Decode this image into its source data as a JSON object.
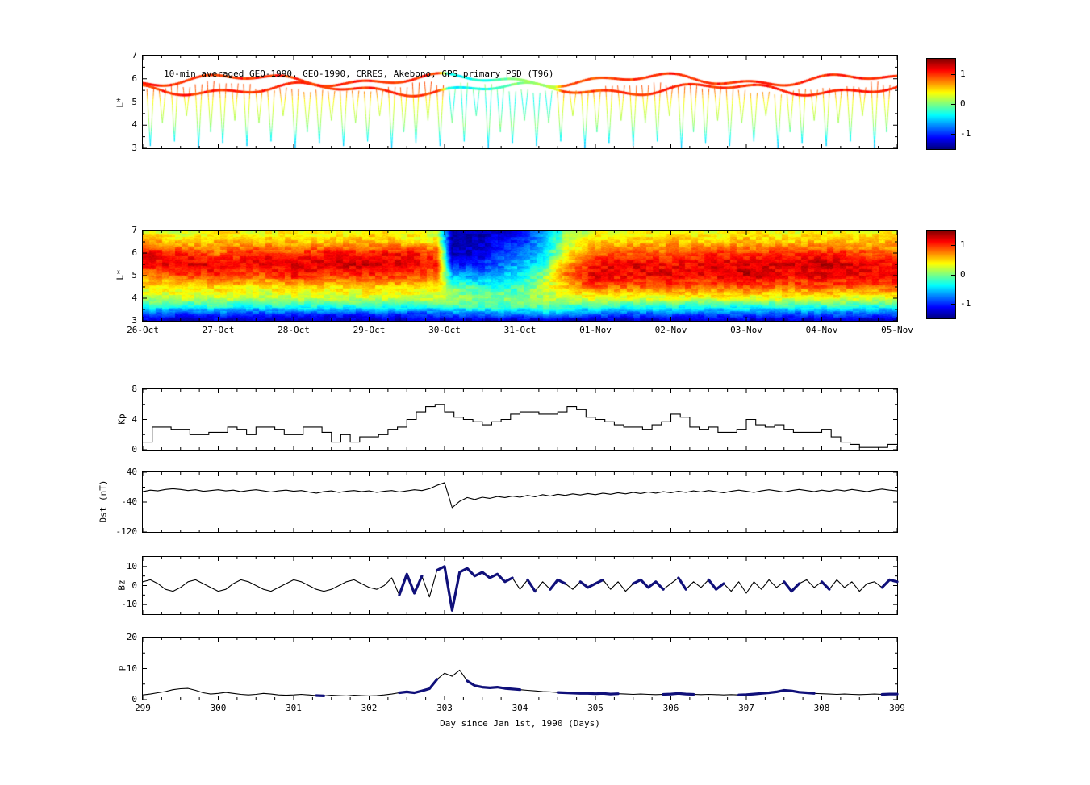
{
  "chart_data": [
    {
      "id": "psd-scatter",
      "type": "scatter",
      "title": "10-min averaged GEO-1990, GEO-1990, CRRES, Akebono, GPS primary PSD (T96)",
      "ylabel": "L*",
      "xlim": [
        299,
        309
      ],
      "ylim": [
        3,
        7
      ],
      "yticks": [
        7,
        6,
        5,
        4,
        3
      ],
      "colorbar": {
        "lim": [
          -1.5,
          1.5
        ],
        "ticks": [
          "1",
          "0",
          "-1"
        ]
      },
      "geo_band": {
        "L_base": [
          5.55,
          5.95
        ],
        "value_keyframes": [
          [
            299,
            1.0
          ],
          [
            302.9,
            1.0
          ],
          [
            303.05,
            -0.4
          ],
          [
            303.6,
            -0.25
          ],
          [
            304.0,
            0.05
          ],
          [
            304.45,
            0.15
          ],
          [
            304.55,
            0.9
          ],
          [
            306,
            1.0
          ],
          [
            309,
            1.05
          ]
        ]
      },
      "L_color_stops": [
        [
          3,
          -0.6
        ],
        [
          3.5,
          -0.35
        ],
        [
          4,
          0.05
        ],
        [
          4.5,
          0.2
        ],
        [
          5,
          0.35
        ],
        [
          5.5,
          0.85
        ],
        [
          6.2,
          1.0
        ],
        [
          7,
          1.0
        ]
      ],
      "storm_window": [
        303.05,
        304.45
      ],
      "storm_shift": -0.85,
      "dips": [
        [
          299.1,
          3.1
        ],
        [
          299.26,
          4.1
        ],
        [
          299.42,
          3.3
        ],
        [
          299.58,
          4.4
        ],
        [
          299.74,
          3.0
        ],
        [
          299.9,
          3.7
        ],
        [
          300.06,
          3.2
        ],
        [
          300.22,
          4.2
        ],
        [
          300.38,
          3.1
        ],
        [
          300.54,
          4.1
        ],
        [
          300.7,
          3.3
        ],
        [
          300.86,
          4.4
        ],
        [
          301.02,
          3.0
        ],
        [
          301.18,
          3.7
        ],
        [
          301.34,
          3.2
        ],
        [
          301.5,
          4.2
        ],
        [
          301.66,
          3.1
        ],
        [
          301.82,
          4.1
        ],
        [
          301.98,
          3.3
        ],
        [
          302.14,
          4.4
        ],
        [
          302.3,
          3.0
        ],
        [
          302.46,
          3.7
        ],
        [
          302.62,
          3.2
        ],
        [
          302.78,
          4.2
        ],
        [
          302.94,
          3.1
        ],
        [
          303.1,
          4.1
        ],
        [
          303.26,
          3.3
        ],
        [
          303.42,
          4.4
        ],
        [
          303.58,
          3.0
        ],
        [
          303.74,
          3.7
        ],
        [
          303.9,
          3.2
        ],
        [
          304.06,
          4.2
        ],
        [
          304.22,
          3.1
        ],
        [
          304.38,
          4.1
        ],
        [
          304.54,
          3.3
        ],
        [
          304.7,
          4.4
        ],
        [
          304.86,
          3.0
        ],
        [
          305.02,
          3.7
        ],
        [
          305.18,
          3.2
        ],
        [
          305.34,
          4.2
        ],
        [
          305.5,
          3.1
        ],
        [
          305.66,
          4.1
        ],
        [
          305.82,
          3.3
        ],
        [
          305.98,
          4.4
        ],
        [
          306.14,
          3.0
        ],
        [
          306.3,
          3.7
        ],
        [
          306.46,
          3.2
        ],
        [
          306.62,
          4.2
        ],
        [
          306.78,
          3.1
        ],
        [
          306.94,
          4.1
        ],
        [
          307.1,
          3.3
        ],
        [
          307.26,
          4.4
        ],
        [
          307.42,
          3.0
        ],
        [
          307.58,
          3.7
        ],
        [
          307.74,
          3.2
        ],
        [
          307.9,
          4.2
        ],
        [
          308.06,
          3.1
        ],
        [
          308.22,
          4.1
        ],
        [
          308.38,
          3.3
        ],
        [
          308.54,
          4.4
        ],
        [
          308.7,
          3.0
        ],
        [
          308.86,
          3.7
        ]
      ]
    },
    {
      "id": "psd-spectrogram",
      "type": "heatmap",
      "ylabel": "L*",
      "xlim": [
        299,
        309
      ],
      "ylim": [
        3,
        7
      ],
      "yticks": [
        7,
        6,
        5,
        4,
        3
      ],
      "xticklabels": [
        "26-Oct",
        "27-Oct",
        "28-Oct",
        "29-Oct",
        "30-Oct",
        "31-Oct",
        "01-Nov",
        "02-Nov",
        "03-Nov",
        "04-Nov",
        "05-Nov"
      ],
      "colorbar": {
        "lim": [
          -1.5,
          1.5
        ],
        "ticks": [
          "1",
          "0",
          "-1"
        ]
      },
      "L_grid": [
        3,
        3.3,
        3.6,
        4,
        4.5,
        5,
        5.5,
        6,
        6.5,
        7
      ],
      "t_grid": [
        299.0,
        299.5,
        300.0,
        300.5,
        301.0,
        301.5,
        302.0,
        302.5,
        302.9,
        303.1,
        303.5,
        304.0,
        304.3,
        304.6,
        305.0,
        305.5,
        306.0,
        306.5,
        307.0,
        307.5,
        308.0,
        308.5,
        309.0
      ],
      "values": [
        [
          -1.3,
          -0.9,
          -0.3,
          0.15,
          0.4,
          0.7,
          1.1,
          1.2,
          0.7,
          0.35
        ],
        [
          -1.3,
          -1.0,
          -0.35,
          0.2,
          0.45,
          0.9,
          1.2,
          1.0,
          0.5,
          0.15
        ],
        [
          -1.3,
          -0.9,
          -0.3,
          0.2,
          0.5,
          1.0,
          1.2,
          0.8,
          0.6,
          0.4
        ],
        [
          -1.3,
          -1.0,
          -0.4,
          0.15,
          0.4,
          0.8,
          1.1,
          1.1,
          0.5,
          0.3
        ],
        [
          -1.3,
          -0.9,
          -0.3,
          0.2,
          0.5,
          1.1,
          1.2,
          0.9,
          0.6,
          0.4
        ],
        [
          -1.3,
          -1.0,
          -0.35,
          0.2,
          0.45,
          0.9,
          1.2,
          1.1,
          0.5,
          0.3
        ],
        [
          -1.3,
          -0.9,
          -0.3,
          0.25,
          0.5,
          1.0,
          1.3,
          1.0,
          0.6,
          0.4
        ],
        [
          -1.3,
          -1.0,
          -0.35,
          0.2,
          0.5,
          0.9,
          1.2,
          1.1,
          0.5,
          0.3
        ],
        [
          -1.3,
          -0.9,
          -0.3,
          0.2,
          0.45,
          0.8,
          1.0,
          0.9,
          0.4,
          0.2
        ],
        [
          -1.3,
          -0.8,
          -0.2,
          0.1,
          0.0,
          -0.6,
          -1.1,
          -1.3,
          -1.35,
          -1.4
        ],
        [
          -1.3,
          -0.8,
          -0.2,
          0.0,
          -0.3,
          -0.7,
          -1.0,
          -1.2,
          -1.3,
          -1.35
        ],
        [
          -1.3,
          -0.7,
          -0.2,
          0.0,
          -0.2,
          -0.4,
          -0.6,
          -0.8,
          -1.0,
          -1.1
        ],
        [
          -1.3,
          -0.6,
          -0.1,
          0.1,
          0.2,
          0.0,
          -0.3,
          -0.5,
          -0.6,
          -0.7
        ],
        [
          -1.3,
          -0.7,
          -0.2,
          0.2,
          0.5,
          0.8,
          0.6,
          0.3,
          0.1,
          0.0
        ],
        [
          -1.3,
          -0.8,
          -0.3,
          0.3,
          0.9,
          1.2,
          1.1,
          0.8,
          0.5,
          0.3
        ],
        [
          -1.3,
          -0.9,
          -0.3,
          0.3,
          0.8,
          1.1,
          1.2,
          0.9,
          0.5,
          0.3
        ],
        [
          -1.3,
          -0.8,
          -0.3,
          0.3,
          0.9,
          1.2,
          1.1,
          0.8,
          0.6,
          0.4
        ],
        [
          -1.3,
          -0.9,
          -0.35,
          0.3,
          0.8,
          1.1,
          1.2,
          1.0,
          0.5,
          0.3
        ],
        [
          -1.3,
          -0.8,
          -0.3,
          0.3,
          0.9,
          1.3,
          1.2,
          0.9,
          0.6,
          0.4
        ],
        [
          -1.3,
          -0.9,
          -0.3,
          0.3,
          0.8,
          1.1,
          1.2,
          1.0,
          0.5,
          0.3
        ],
        [
          -1.3,
          -0.8,
          -0.3,
          0.3,
          0.9,
          1.2,
          1.3,
          1.0,
          0.6,
          0.4
        ],
        [
          -1.3,
          -0.9,
          -0.35,
          0.3,
          0.8,
          1.1,
          1.2,
          0.9,
          0.5,
          0.3
        ],
        [
          -1.3,
          -0.8,
          -0.3,
          0.3,
          0.9,
          1.2,
          1.1,
          0.8,
          0.6,
          0.4
        ]
      ]
    },
    {
      "id": "kp",
      "type": "line",
      "ylabel": "Kp",
      "ylim": [
        0,
        8
      ],
      "yticks": [
        8,
        4,
        0
      ],
      "x_start": 299,
      "dx": 0.125,
      "values": [
        1.0,
        3.0,
        3.0,
        2.7,
        2.7,
        2.0,
        2.0,
        2.3,
        2.3,
        3.0,
        2.7,
        2.0,
        3.0,
        3.0,
        2.7,
        2.0,
        2.0,
        3.0,
        3.0,
        2.3,
        1.0,
        2.0,
        1.0,
        1.7,
        1.7,
        2.0,
        2.7,
        3.0,
        4.0,
        5.0,
        5.7,
        6.0,
        5.0,
        4.3,
        4.0,
        3.7,
        3.3,
        3.7,
        4.0,
        4.7,
        5.0,
        5.0,
        4.7,
        4.7,
        5.0,
        5.7,
        5.3,
        4.3,
        4.0,
        3.7,
        3.3,
        3.0,
        3.0,
        2.7,
        3.3,
        3.7,
        4.7,
        4.3,
        3.0,
        2.7,
        3.0,
        2.3,
        2.3,
        2.7,
        4.0,
        3.3,
        3.0,
        3.3,
        2.7,
        2.3,
        2.3,
        2.3,
        2.7,
        1.7,
        1.0,
        0.7,
        0.3,
        0.3,
        0.3,
        0.7
      ]
    },
    {
      "id": "dst",
      "type": "line",
      "ylabel": "Dst (nT)",
      "ylim": [
        -120,
        40
      ],
      "yticks": [
        40,
        -40,
        -120
      ],
      "x_start": 299,
      "dx": 0.1,
      "values": [
        -12,
        -8,
        -10,
        -6,
        -4,
        -6,
        -9,
        -7,
        -11,
        -9,
        -7,
        -10,
        -8,
        -12,
        -9,
        -7,
        -10,
        -13,
        -10,
        -8,
        -11,
        -9,
        -13,
        -16,
        -12,
        -10,
        -14,
        -11,
        -9,
        -12,
        -10,
        -14,
        -11,
        -9,
        -13,
        -10,
        -7,
        -9,
        -4,
        5,
        12,
        -55,
        -38,
        -28,
        -33,
        -27,
        -30,
        -25,
        -28,
        -24,
        -27,
        -22,
        -26,
        -20,
        -24,
        -19,
        -22,
        -18,
        -21,
        -17,
        -20,
        -16,
        -19,
        -15,
        -18,
        -14,
        -17,
        -13,
        -16,
        -12,
        -15,
        -11,
        -14,
        -10,
        -13,
        -9,
        -12,
        -15,
        -11,
        -8,
        -11,
        -14,
        -10,
        -7,
        -10,
        -13,
        -9,
        -6,
        -9,
        -12,
        -8,
        -11,
        -7,
        -10,
        -6,
        -9,
        -12,
        -8,
        -5,
        -8,
        -10
      ]
    },
    {
      "id": "bz",
      "type": "line",
      "ylabel": "Bz",
      "ylim": [
        -15,
        15
      ],
      "yticks": [
        10,
        0,
        -10
      ],
      "x_start": 299,
      "dx": 0.1,
      "thick_color": "#10107a",
      "thick_segments": [
        [
          302.35,
          302.75
        ],
        [
          302.85,
          303.95
        ],
        [
          304.05,
          304.2
        ],
        [
          304.35,
          304.6
        ],
        [
          304.75,
          305.15
        ],
        [
          305.5,
          305.9
        ],
        [
          306.1,
          306.25
        ],
        [
          306.5,
          306.7
        ],
        [
          307.5,
          307.75
        ],
        [
          308.0,
          308.15
        ],
        [
          308.8,
          309.0
        ]
      ],
      "values": [
        2,
        3,
        1,
        -2,
        -3,
        -1,
        2,
        3,
        1,
        -1,
        -3,
        -2,
        1,
        3,
        2,
        0,
        -2,
        -3,
        -1,
        1,
        3,
        2,
        0,
        -2,
        -3,
        -2,
        0,
        2,
        3,
        1,
        -1,
        -2,
        0,
        4,
        -5,
        6,
        -4,
        5,
        -6,
        8,
        10,
        -13,
        7,
        9,
        5,
        7,
        4,
        6,
        2,
        4,
        -2,
        3,
        -3,
        2,
        -2,
        3,
        1,
        -2,
        2,
        -1,
        1,
        3,
        -2,
        2,
        -3,
        1,
        3,
        -1,
        2,
        -2,
        1,
        4,
        -2,
        2,
        -1,
        3,
        -2,
        1,
        -3,
        2,
        -4,
        2,
        -2,
        3,
        -1,
        2,
        -3,
        1,
        3,
        -1,
        2,
        -2,
        3,
        -1,
        2,
        -3,
        1,
        2,
        -1,
        3,
        2
      ]
    },
    {
      "id": "p",
      "type": "line",
      "ylabel": "P",
      "ylim": [
        0,
        20
      ],
      "yticks": [
        20,
        10,
        0
      ],
      "x_start": 299,
      "dx": 0.1,
      "thick_color": "#10107a",
      "thick_segments": [
        [
          301.3,
          301.45
        ],
        [
          302.35,
          302.95
        ],
        [
          303.3,
          304.05
        ],
        [
          304.45,
          305.35
        ],
        [
          305.9,
          306.3
        ],
        [
          306.9,
          307.95
        ],
        [
          308.75,
          309.0
        ]
      ],
      "xticks": [
        299,
        300,
        301,
        302,
        303,
        304,
        305,
        306,
        307,
        308,
        309
      ],
      "xlabel": "Day since Jan 1st, 1990 (Days)",
      "values": [
        1.5,
        1.8,
        2.2,
        2.6,
        3.2,
        3.5,
        3.6,
        3.0,
        2.2,
        1.8,
        2.0,
        2.3,
        2.0,
        1.7,
        1.5,
        1.7,
        2.0,
        1.8,
        1.5,
        1.4,
        1.5,
        1.7,
        1.5,
        1.3,
        1.2,
        1.4,
        1.3,
        1.2,
        1.4,
        1.3,
        1.2,
        1.3,
        1.5,
        1.8,
        2.2,
        2.5,
        2.2,
        2.8,
        3.5,
        6.5,
        8.5,
        7.5,
        9.5,
        6.0,
        4.5,
        4.0,
        3.8,
        4.0,
        3.6,
        3.4,
        3.2,
        3.0,
        2.8,
        2.6,
        2.5,
        2.3,
        2.2,
        2.1,
        2.0,
        2.0,
        1.9,
        2.0,
        1.8,
        1.9,
        1.8,
        1.7,
        1.8,
        1.7,
        1.6,
        1.7,
        1.8,
        2.0,
        1.8,
        1.7,
        1.6,
        1.7,
        1.6,
        1.5,
        1.6,
        1.5,
        1.6,
        1.8,
        2.0,
        2.2,
        2.5,
        3.0,
        2.8,
        2.4,
        2.2,
        2.0,
        1.9,
        1.8,
        1.7,
        1.8,
        1.7,
        1.6,
        1.7,
        1.8,
        1.7,
        1.8,
        1.8
      ]
    }
  ]
}
